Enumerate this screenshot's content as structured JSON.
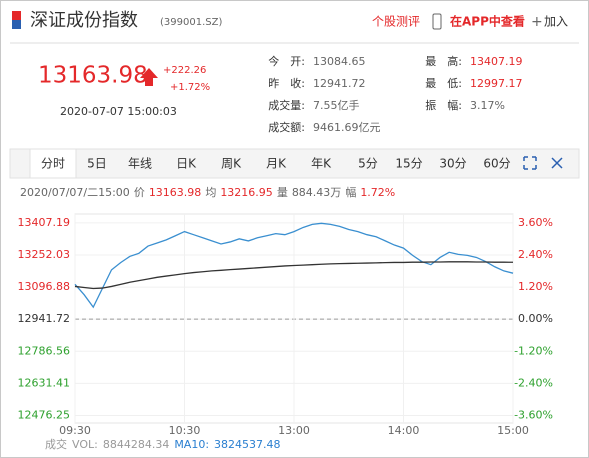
{
  "header": {
    "title": "深证成份指数",
    "code": "(399001.SZ)",
    "links": [
      "个股测评",
      "在APP中查看",
      "加入"
    ]
  },
  "quote": {
    "price": "13163.98",
    "change": "+222.26",
    "change_pct": "+1.72%",
    "time": "2020-07-07 15:00:03"
  },
  "stats": [
    {
      "label": "今　开:",
      "value": "13084.65"
    },
    {
      "label": "昨　收:",
      "value": "12941.72"
    },
    {
      "label": "成交量:",
      "value": "7.55亿手"
    },
    {
      "label": "成交额:",
      "value": "9461.69亿元"
    },
    {
      "label": "最　高:",
      "value": "13407.19"
    },
    {
      "label": "最　低:",
      "value": "12997.17"
    },
    {
      "label": "振　幅:",
      "value": "3.17%"
    }
  ],
  "tabs": [
    "分时",
    "5日",
    "年线",
    "日K",
    "周K",
    "月K",
    "年K",
    "5分",
    "15分",
    "30分",
    "60分"
  ],
  "info": {
    "date": "2020/07/07/二15:00",
    "price": "13163.98",
    "average": "13216.95",
    "volume_label": "量",
    "volume": "884.43万",
    "range_label": "幅",
    "range": "1.72%"
  },
  "chart_data": {
    "type": "line",
    "x": [
      0,
      5,
      10,
      15,
      20,
      25,
      30,
      35,
      40,
      45,
      50,
      55,
      60,
      65,
      70,
      75,
      80,
      85,
      90,
      95,
      100,
      105,
      110,
      115,
      120,
      125,
      130,
      135,
      140,
      145,
      150,
      155,
      160,
      165,
      170,
      175,
      180,
      185,
      190,
      195,
      200,
      205,
      210,
      215,
      220,
      225,
      230,
      235,
      240
    ],
    "series": [
      {
        "name": "价",
        "color": "#3a8fd0",
        "values": [
          13110,
          13060,
          13000,
          13090,
          13180,
          13215,
          13245,
          13260,
          13295,
          13310,
          13325,
          13345,
          13365,
          13350,
          13335,
          13320,
          13305,
          13315,
          13330,
          13320,
          13335,
          13345,
          13355,
          13350,
          13365,
          13385,
          13400,
          13405,
          13400,
          13390,
          13375,
          13365,
          13350,
          13340,
          13320,
          13300,
          13285,
          13250,
          13220,
          13205,
          13240,
          13265,
          13255,
          13250,
          13240,
          13220,
          13195,
          13175,
          13163.98
        ]
      },
      {
        "name": "均",
        "color": "#333333",
        "values": [
          13100,
          13095,
          13090,
          13092,
          13100,
          13110,
          13120,
          13128,
          13136,
          13144,
          13150,
          13156,
          13162,
          13167,
          13171,
          13175,
          13178,
          13181,
          13184,
          13187,
          13190,
          13193,
          13196,
          13199,
          13201,
          13203,
          13205,
          13207,
          13209,
          13210,
          13211,
          13212,
          13213,
          13214,
          13215,
          13216,
          13216,
          13217,
          13217,
          13218,
          13218,
          13219,
          13219,
          13219,
          13218,
          13218,
          13217,
          13217,
          13216.95
        ]
      }
    ],
    "xlim": [
      0,
      240
    ],
    "xticks": [
      {
        "value": 0,
        "label": "09:30"
      },
      {
        "value": 60,
        "label": "10:30"
      },
      {
        "value": 120,
        "label": "13:00"
      },
      {
        "value": 180,
        "label": "14:00"
      },
      {
        "value": 240,
        "label": "15:00"
      }
    ],
    "ylim": [
      12440,
      13450
    ],
    "yticks": [
      13407.19,
      13252.03,
      13096.88,
      12941.72,
      12786.56,
      12631.41,
      12476.25
    ],
    "y2lim": [
      -3.877,
      3.927
    ],
    "y2ticks": [
      {
        "value": 3.6,
        "label": "3.60%"
      },
      {
        "value": 2.4,
        "label": "2.40%"
      },
      {
        "value": 1.2,
        "label": "1.20%"
      },
      {
        "value": 0,
        "label": "0.00%"
      },
      {
        "value": -1.2,
        "label": "-1.20%"
      },
      {
        "value": -2.4,
        "label": "-2.40%"
      },
      {
        "value": -3.6,
        "label": "-3.60%"
      }
    ],
    "grid": true
  },
  "volume": {
    "label": "成交",
    "vol_label": "VOL:",
    "vol": "8844284.34",
    "ma_label": "MA10:",
    "ma": "3824537.48"
  }
}
